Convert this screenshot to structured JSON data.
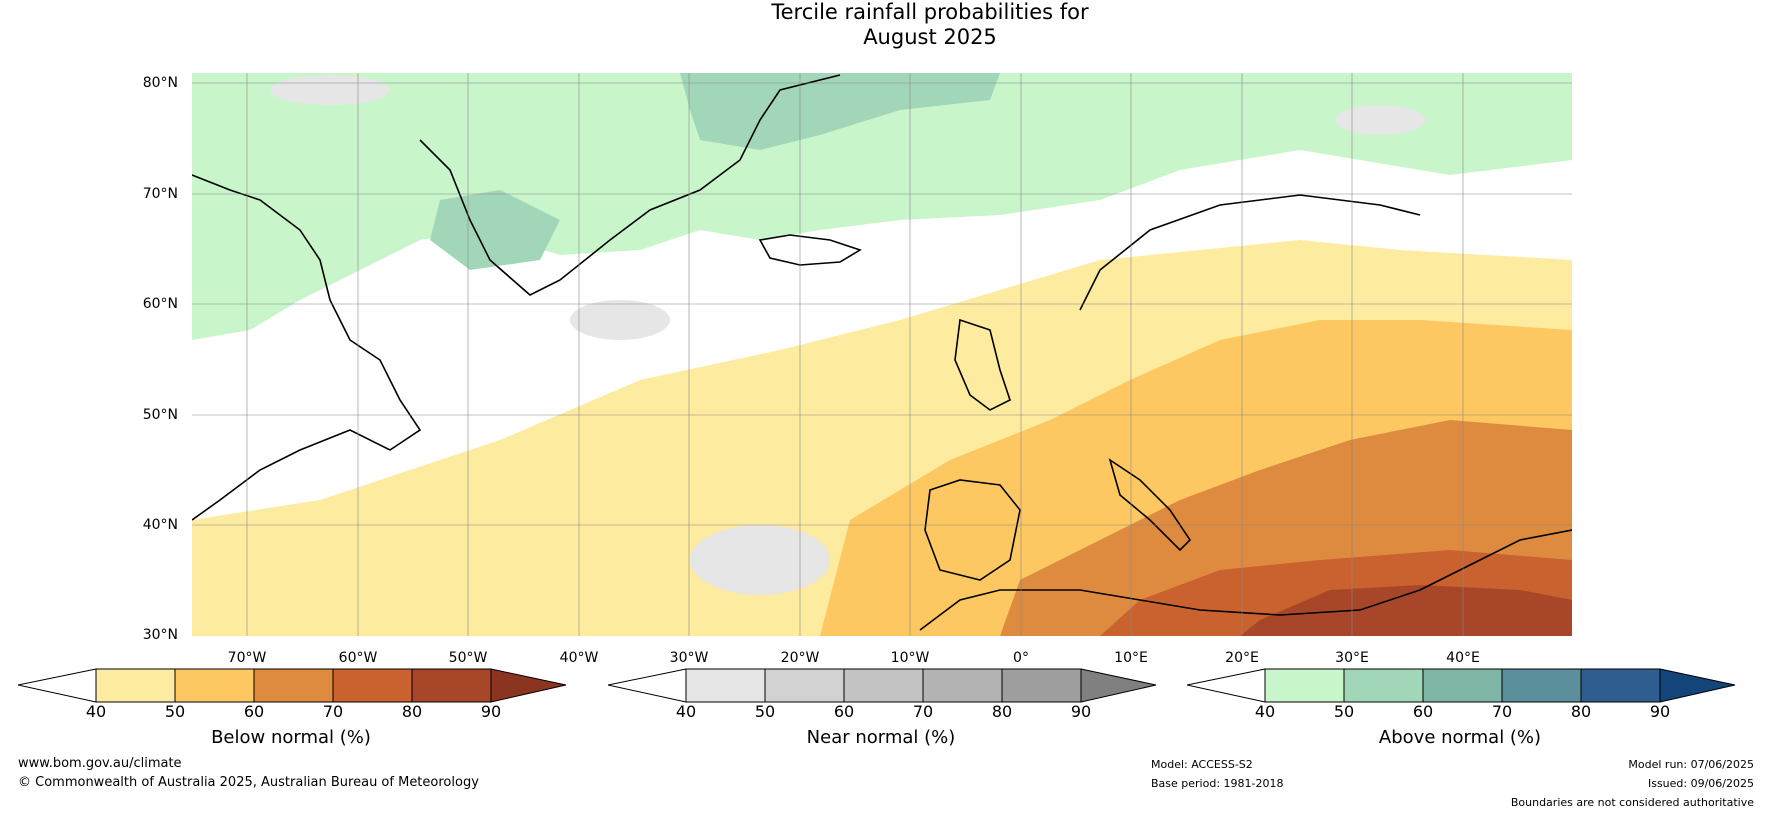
{
  "title": {
    "line1": "Tercile rainfall probabilities for",
    "line2": "August 2025"
  },
  "map": {
    "lat_labels": [
      "80°N",
      "70°N",
      "60°N",
      "50°N",
      "40°N",
      "30°N"
    ],
    "lon_labels": [
      "70°W",
      "60°W",
      "50°W",
      "40°W",
      "30°W",
      "20°W",
      "10°W",
      "0°",
      "10°E",
      "20°E",
      "30°E",
      "40°E"
    ],
    "lon_range": [
      -77,
      48
    ],
    "lat_range": [
      30,
      81
    ]
  },
  "colorbars": [
    {
      "label": "Below normal (%)",
      "ticks": [
        "40",
        "50",
        "60",
        "70",
        "80",
        "90"
      ],
      "colors": [
        "#ffffff",
        "#fdeba0",
        "#fdc861",
        "#de8b40",
        "#c9622e",
        "#a8462a",
        "#8b3420"
      ]
    },
    {
      "label": "Near normal (%)",
      "ticks": [
        "40",
        "50",
        "60",
        "70",
        "80",
        "90"
      ],
      "colors": [
        "#ffffff",
        "#e6e6e6",
        "#d2d2d2",
        "#c3c3c3",
        "#b3b3b3",
        "#9e9e9e",
        "#808080"
      ]
    },
    {
      "label": "Above normal (%)",
      "ticks": [
        "40",
        "50",
        "60",
        "70",
        "80",
        "90"
      ],
      "colors": [
        "#ffffff",
        "#c9f5cb",
        "#a1d7b8",
        "#7fb6a8",
        "#5b8f9c",
        "#2f5d8f",
        "#14457a"
      ]
    }
  ],
  "footer": {
    "website": "www.bom.gov.au/climate",
    "copyright": "© Commonwealth of Australia 2025, Australian Bureau of Meteorology",
    "model": "Model: ACCESS-S2",
    "base_period": "Base period: 1981-2018",
    "model_run": "Model run: 07/06/2025",
    "issued": "Issued: 09/06/2025",
    "disclaimer": "Boundaries are not considered authoritative"
  }
}
